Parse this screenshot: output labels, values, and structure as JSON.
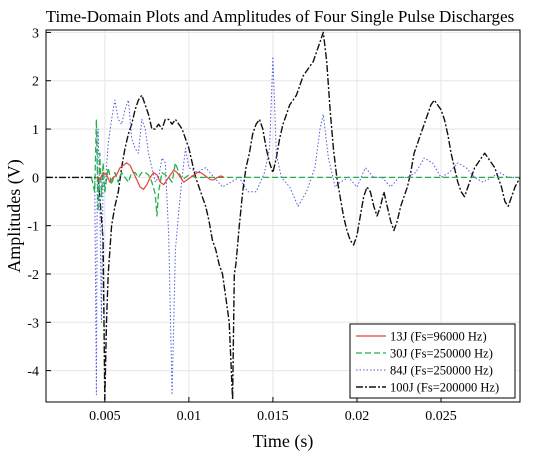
{
  "chart_data": {
    "type": "line",
    "title": "Time-Domain Plots and Amplitudes of Four Single Pulse Discharges",
    "xlabel": "Time (s)",
    "ylabel": "Amplitudes (V)",
    "xlim": [
      0.0015,
      0.0297
    ],
    "ylim": [
      -4.65,
      3.05
    ],
    "xticks": [
      0.005,
      0.01,
      0.015,
      0.02,
      0.025
    ],
    "xtick_labels": [
      "0.005",
      "0.01",
      "0.015",
      "0.02",
      "0.025"
    ],
    "yticks": [
      3,
      2,
      1,
      0,
      -1,
      -2,
      -3,
      -4
    ],
    "ytick_labels": [
      "3",
      "2",
      "1",
      "0",
      "-1",
      "-2",
      "-3",
      "-4"
    ],
    "grid": true,
    "legend_position": "bottom-right",
    "series": [
      {
        "name": "13J (Fs=96000 Hz)",
        "color": "#e8413c",
        "style": "solid",
        "points": [
          [
            0.0045,
            0.0
          ],
          [
            0.0047,
            -0.05
          ],
          [
            0.0049,
            0.1
          ],
          [
            0.0051,
            0.05
          ],
          [
            0.0053,
            -0.1
          ],
          [
            0.0055,
            0.0
          ],
          [
            0.0057,
            0.05
          ],
          [
            0.0059,
            0.2
          ],
          [
            0.0061,
            0.25
          ],
          [
            0.0063,
            0.3
          ],
          [
            0.0065,
            0.25
          ],
          [
            0.0067,
            0.1
          ],
          [
            0.0069,
            -0.05
          ],
          [
            0.0071,
            -0.2
          ],
          [
            0.0073,
            -0.25
          ],
          [
            0.0075,
            -0.15
          ],
          [
            0.0077,
            0.0
          ],
          [
            0.0079,
            0.1
          ],
          [
            0.0081,
            0.05
          ],
          [
            0.0083,
            -0.1
          ],
          [
            0.0085,
            -0.15
          ],
          [
            0.0087,
            -0.05
          ],
          [
            0.0089,
            0.05
          ],
          [
            0.0091,
            0.15
          ],
          [
            0.0093,
            0.1
          ],
          [
            0.0095,
            0.0
          ],
          [
            0.0097,
            -0.1
          ],
          [
            0.0099,
            -0.05
          ],
          [
            0.0101,
            0.0
          ],
          [
            0.0103,
            0.05
          ],
          [
            0.0105,
            0.1
          ],
          [
            0.0107,
            0.1
          ],
          [
            0.0109,
            0.05
          ],
          [
            0.0111,
            0.0
          ],
          [
            0.0113,
            -0.05
          ],
          [
            0.0115,
            -0.05
          ],
          [
            0.0117,
            0.0
          ],
          [
            0.0119,
            0.03
          ],
          [
            0.0121,
            0.0
          ]
        ]
      },
      {
        "name": "30J (Fs=250000 Hz)",
        "color": "#22b14c",
        "style": "dashed",
        "points": [
          [
            0.0042,
            0.0
          ],
          [
            0.0044,
            -0.3
          ],
          [
            0.0045,
            1.2
          ],
          [
            0.0046,
            -0.7
          ],
          [
            0.0047,
            0.5
          ],
          [
            0.0048,
            -0.4
          ],
          [
            0.0049,
            0.3
          ],
          [
            0.005,
            -0.3
          ],
          [
            0.0052,
            0.2
          ],
          [
            0.0054,
            -0.15
          ],
          [
            0.0056,
            0.1
          ],
          [
            0.0058,
            -0.1
          ],
          [
            0.006,
            0.1
          ],
          [
            0.0062,
            0.0
          ],
          [
            0.0064,
            -0.1
          ],
          [
            0.0066,
            0.1
          ],
          [
            0.0068,
            0.1
          ],
          [
            0.007,
            0.0
          ],
          [
            0.0072,
            0.1
          ],
          [
            0.0074,
            0.1
          ],
          [
            0.0076,
            0.05
          ],
          [
            0.0078,
            -0.1
          ],
          [
            0.008,
            -0.35
          ],
          [
            0.0081,
            -0.8
          ],
          [
            0.0082,
            -0.3
          ],
          [
            0.0084,
            0.1
          ],
          [
            0.0086,
            0.05
          ],
          [
            0.0088,
            0.0
          ],
          [
            0.009,
            -0.1
          ],
          [
            0.0092,
            0.3
          ],
          [
            0.0094,
            0.1
          ],
          [
            0.0096,
            -0.05
          ],
          [
            0.0098,
            0.0
          ],
          [
            0.01,
            0.05
          ],
          [
            0.0104,
            0.0
          ],
          [
            0.011,
            0.0
          ],
          [
            0.0117,
            0.0
          ],
          [
            0.012,
            0.0
          ],
          [
            0.015,
            0.0
          ],
          [
            0.02,
            0.0
          ],
          [
            0.025,
            0.0
          ],
          [
            0.0297,
            0.0
          ]
        ]
      },
      {
        "name": "84J (Fs=250000 Hz)",
        "color": "#4f5ae0",
        "style": "dotted",
        "points": [
          [
            0.0044,
            0.0
          ],
          [
            0.0045,
            -4.5
          ],
          [
            0.00455,
            0.3
          ],
          [
            0.0046,
            1.0
          ],
          [
            0.0047,
            -0.5
          ],
          [
            0.0048,
            -3.0
          ],
          [
            0.0049,
            0.0
          ],
          [
            0.005,
            -0.3
          ],
          [
            0.0052,
            0.7
          ],
          [
            0.0054,
            1.2
          ],
          [
            0.0056,
            1.6
          ],
          [
            0.0058,
            1.2
          ],
          [
            0.006,
            1.1
          ],
          [
            0.0062,
            1.4
          ],
          [
            0.0064,
            1.6
          ],
          [
            0.0066,
            0.8
          ],
          [
            0.0068,
            0.6
          ],
          [
            0.007,
            0.5
          ],
          [
            0.0072,
            1.2
          ],
          [
            0.0074,
            1.0
          ],
          [
            0.0076,
            0.5
          ],
          [
            0.0078,
            0.2
          ],
          [
            0.008,
            -0.1
          ],
          [
            0.0082,
            0.0
          ],
          [
            0.0084,
            0.4
          ],
          [
            0.0086,
            0.3
          ],
          [
            0.0088,
            -1.2
          ],
          [
            0.009,
            -4.5
          ],
          [
            0.0092,
            -1.5
          ],
          [
            0.0094,
            -0.7
          ],
          [
            0.0096,
            0.0
          ],
          [
            0.0098,
            0.6
          ],
          [
            0.01,
            0.2
          ],
          [
            0.0105,
            0.1
          ],
          [
            0.011,
            0.2
          ],
          [
            0.0115,
            0.0
          ],
          [
            0.012,
            -0.2
          ],
          [
            0.0125,
            -0.1
          ],
          [
            0.013,
            0.0
          ],
          [
            0.0135,
            -0.3
          ],
          [
            0.014,
            -0.3
          ],
          [
            0.0145,
            0.1
          ],
          [
            0.0148,
            0.6
          ],
          [
            0.015,
            2.5
          ],
          [
            0.0152,
            0.5
          ],
          [
            0.0155,
            0.0
          ],
          [
            0.016,
            -0.2
          ],
          [
            0.0165,
            -0.6
          ],
          [
            0.017,
            -0.3
          ],
          [
            0.0175,
            0.2
          ],
          [
            0.0178,
            1.0
          ],
          [
            0.018,
            1.3
          ],
          [
            0.0183,
            0.4
          ],
          [
            0.0187,
            -0.2
          ],
          [
            0.019,
            -0.1
          ],
          [
            0.0195,
            0.0
          ],
          [
            0.02,
            -0.2
          ],
          [
            0.0205,
            0.2
          ],
          [
            0.021,
            0.0
          ],
          [
            0.0215,
            0.0
          ],
          [
            0.022,
            -0.2
          ],
          [
            0.0225,
            0.0
          ],
          [
            0.023,
            0.0
          ],
          [
            0.0235,
            0.1
          ],
          [
            0.024,
            0.4
          ],
          [
            0.0245,
            0.3
          ],
          [
            0.025,
            0.0
          ],
          [
            0.0255,
            0.1
          ],
          [
            0.026,
            0.3
          ],
          [
            0.0265,
            0.2
          ],
          [
            0.027,
            0.0
          ],
          [
            0.0275,
            -0.1
          ],
          [
            0.028,
            0.0
          ],
          [
            0.0285,
            0.1
          ],
          [
            0.029,
            0.0
          ],
          [
            0.0297,
            0.0
          ]
        ]
      },
      {
        "name": "100J (Fs=200000 Hz)",
        "color": "#111111",
        "style": "dashdot",
        "points": [
          [
            0.0015,
            0.0
          ],
          [
            0.0046,
            0.0
          ],
          [
            0.0047,
            -0.4
          ],
          [
            0.0049,
            -1.3
          ],
          [
            0.005,
            -4.6
          ],
          [
            0.0051,
            -3.0
          ],
          [
            0.0052,
            -2.0
          ],
          [
            0.0054,
            -1.0
          ],
          [
            0.0056,
            -0.6
          ],
          [
            0.0058,
            -0.3
          ],
          [
            0.006,
            0.2
          ],
          [
            0.0062,
            0.6
          ],
          [
            0.0064,
            0.9
          ],
          [
            0.0066,
            1.1
          ],
          [
            0.0068,
            1.4
          ],
          [
            0.007,
            1.6
          ],
          [
            0.0072,
            1.7
          ],
          [
            0.0074,
            1.5
          ],
          [
            0.0076,
            1.3
          ],
          [
            0.0078,
            1.0
          ],
          [
            0.008,
            1.0
          ],
          [
            0.0082,
            1.1
          ],
          [
            0.0084,
            1.0
          ],
          [
            0.0086,
            1.2
          ],
          [
            0.0088,
            1.2
          ],
          [
            0.009,
            1.1
          ],
          [
            0.0092,
            1.2
          ],
          [
            0.0094,
            1.1
          ],
          [
            0.0096,
            1.0
          ],
          [
            0.0098,
            0.8
          ],
          [
            0.01,
            0.6
          ],
          [
            0.0102,
            0.3
          ],
          [
            0.0104,
            0.0
          ],
          [
            0.0106,
            -0.2
          ],
          [
            0.0108,
            -0.4
          ],
          [
            0.011,
            -0.6
          ],
          [
            0.0112,
            -0.9
          ],
          [
            0.0114,
            -1.3
          ],
          [
            0.0116,
            -1.5
          ],
          [
            0.0118,
            -1.8
          ],
          [
            0.012,
            -2.0
          ],
          [
            0.0122,
            -2.5
          ],
          [
            0.0124,
            -3.0
          ],
          [
            0.0126,
            -4.6
          ],
          [
            0.0127,
            -2.0
          ],
          [
            0.0128,
            -1.8
          ],
          [
            0.013,
            -1.0
          ],
          [
            0.0132,
            -0.3
          ],
          [
            0.0134,
            0.2
          ],
          [
            0.0136,
            0.5
          ],
          [
            0.0138,
            0.9
          ],
          [
            0.014,
            1.1
          ],
          [
            0.0142,
            1.2
          ],
          [
            0.0144,
            1.0
          ],
          [
            0.0146,
            0.6
          ],
          [
            0.0148,
            0.3
          ],
          [
            0.015,
            0.1
          ],
          [
            0.0152,
            0.4
          ],
          [
            0.0154,
            0.8
          ],
          [
            0.0156,
            1.1
          ],
          [
            0.0158,
            1.3
          ],
          [
            0.016,
            1.5
          ],
          [
            0.0162,
            1.6
          ],
          [
            0.0164,
            1.7
          ],
          [
            0.0166,
            1.9
          ],
          [
            0.0168,
            2.1
          ],
          [
            0.017,
            2.2
          ],
          [
            0.0172,
            2.3
          ],
          [
            0.0174,
            2.4
          ],
          [
            0.0176,
            2.6
          ],
          [
            0.0178,
            2.8
          ],
          [
            0.018,
            3.0
          ],
          [
            0.0182,
            2.4
          ],
          [
            0.0184,
            1.4
          ],
          [
            0.0186,
            0.6
          ],
          [
            0.0188,
            0.0
          ],
          [
            0.019,
            -0.4
          ],
          [
            0.0192,
            -0.8
          ],
          [
            0.0194,
            -1.1
          ],
          [
            0.0196,
            -1.3
          ],
          [
            0.0198,
            -1.4
          ],
          [
            0.02,
            -1.2
          ],
          [
            0.0202,
            -0.8
          ],
          [
            0.0204,
            -0.4
          ],
          [
            0.0206,
            -0.2
          ],
          [
            0.0208,
            -0.3
          ],
          [
            0.021,
            -0.6
          ],
          [
            0.0212,
            -0.8
          ],
          [
            0.0214,
            -0.6
          ],
          [
            0.0216,
            -0.3
          ],
          [
            0.0218,
            -0.6
          ],
          [
            0.022,
            -0.9
          ],
          [
            0.0222,
            -1.1
          ],
          [
            0.0224,
            -0.9
          ],
          [
            0.0226,
            -0.6
          ],
          [
            0.0228,
            -0.4
          ],
          [
            0.023,
            -0.2
          ],
          [
            0.0232,
            0.1
          ],
          [
            0.0234,
            0.5
          ],
          [
            0.0236,
            0.7
          ],
          [
            0.0238,
            0.9
          ],
          [
            0.024,
            1.1
          ],
          [
            0.0242,
            1.3
          ],
          [
            0.0244,
            1.5
          ],
          [
            0.0246,
            1.6
          ],
          [
            0.0248,
            1.5
          ],
          [
            0.025,
            1.4
          ],
          [
            0.0252,
            1.2
          ],
          [
            0.0254,
            0.9
          ],
          [
            0.0256,
            0.5
          ],
          [
            0.0258,
            0.2
          ],
          [
            0.026,
            -0.1
          ],
          [
            0.0262,
            -0.3
          ],
          [
            0.0264,
            -0.4
          ],
          [
            0.0266,
            -0.2
          ],
          [
            0.0268,
            0.0
          ],
          [
            0.027,
            0.2
          ],
          [
            0.0272,
            0.3
          ],
          [
            0.0274,
            0.4
          ],
          [
            0.0276,
            0.5
          ],
          [
            0.0278,
            0.4
          ],
          [
            0.028,
            0.3
          ],
          [
            0.0282,
            0.2
          ],
          [
            0.0284,
            0.0
          ],
          [
            0.0286,
            -0.2
          ],
          [
            0.0288,
            -0.5
          ],
          [
            0.029,
            -0.6
          ],
          [
            0.0292,
            -0.4
          ],
          [
            0.0294,
            -0.2
          ],
          [
            0.0297,
            0.0
          ]
        ]
      }
    ]
  }
}
